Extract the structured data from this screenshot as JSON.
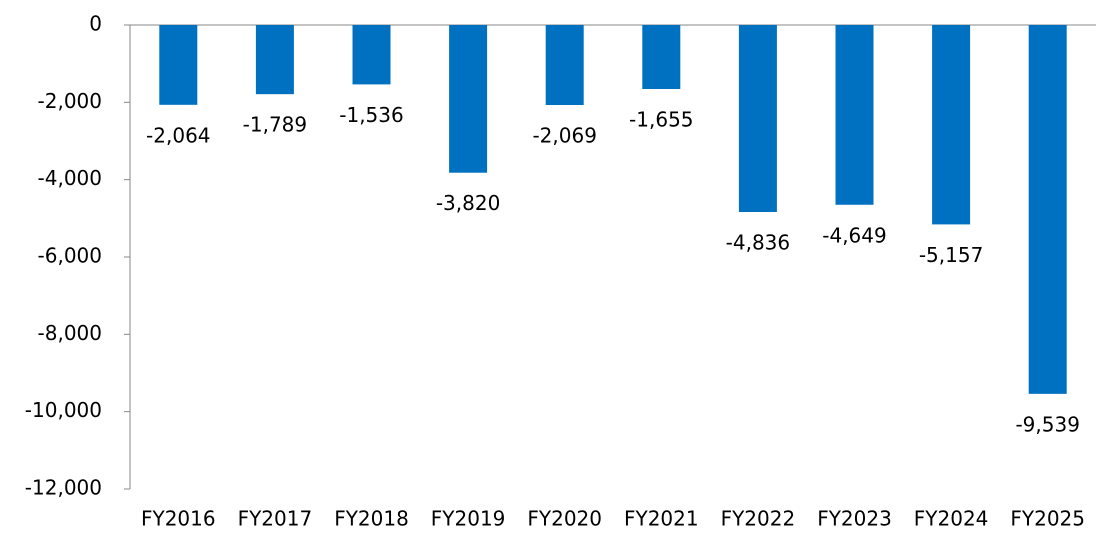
{
  "chart_data": {
    "type": "bar",
    "categories": [
      "FY2016",
      "FY2017",
      "FY2018",
      "FY2019",
      "FY2020",
      "FY2021",
      "FY2022",
      "FY2023",
      "FY2024",
      "FY2025"
    ],
    "values": [
      -2064,
      -1789,
      -1536,
      -3820,
      -2069,
      -1655,
      -4836,
      -4649,
      -5157,
      -9539
    ],
    "value_labels": [
      "-2,064",
      "-1,789",
      "-1,536",
      "-3,820",
      "-2,069",
      "-1,655",
      "-4,836",
      "-4,649",
      "-5,157",
      "-9,539"
    ],
    "color": "#0070c0",
    "ylim": [
      -12000,
      0
    ],
    "yticks": [
      0,
      {
        "value": -2000,
        "label": "-2,000"
      },
      {
        "value": -4000,
        "label": "-4,000"
      },
      {
        "value": -6000,
        "label": "-6,000"
      },
      {
        "value": -8000,
        "label": "-8,000"
      },
      {
        "value": -10000,
        "label": "-10,000"
      },
      {
        "value": -12000,
        "label": "-12,000"
      }
    ]
  }
}
